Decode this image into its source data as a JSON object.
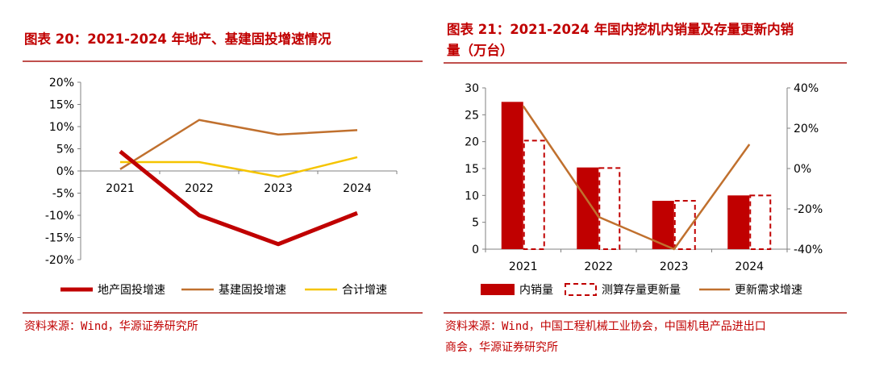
{
  "left": {
    "title": "图表 20：2021-2024 年地产、基建固投增速情况",
    "source": "资料来源：Wind，华源证券研究所"
  },
  "right": {
    "title_line1": "图表 21：2021-2024 年国内挖机内销量及存量更新内销",
    "title_line2": "量（万台）",
    "source_line1": "资料来源：Wind，中国工程机械工业协会，中国机电产品进出口",
    "source_line2": "商会，华源证券研究所"
  },
  "colors": {
    "title": "#c00000",
    "rule": "#c0504d",
    "dark_red": "#c00000",
    "orange": "#c0702e",
    "yellow": "#f5c400",
    "bar_red": "#c00000",
    "dashed_red": "#c00000"
  },
  "chart_data": [
    {
      "type": "line",
      "categories": [
        "2021",
        "2022",
        "2023",
        "2024"
      ],
      "ylim": [
        -20,
        20
      ],
      "yticks": [
        -20,
        -15,
        -10,
        -5,
        0,
        5,
        10,
        15,
        20
      ],
      "ytick_labels": [
        "-20%",
        "-15%",
        "-10%",
        "-5%",
        "0%",
        "5%",
        "10%",
        "15%",
        "20%"
      ],
      "series": [
        {
          "name": "地产固投增速",
          "values": [
            4.4,
            -10.0,
            -16.5,
            -9.5
          ],
          "color": "#c00000"
        },
        {
          "name": "基建固投增速",
          "values": [
            0.4,
            11.5,
            8.2,
            9.2
          ],
          "color": "#c0702e"
        },
        {
          "name": "合计增速",
          "values": [
            2.0,
            2.0,
            -1.3,
            3.1
          ],
          "color": "#f5c400"
        }
      ],
      "legend_position": "bottom"
    },
    {
      "type": "bar",
      "categories": [
        "2021",
        "2022",
        "2023",
        "2024"
      ],
      "ylim": [
        0,
        30
      ],
      "yticks": [
        0,
        5,
        10,
        15,
        20,
        25,
        30
      ],
      "ytick_labels": [
        "0",
        "5",
        "10",
        "15",
        "20",
        "25",
        "30"
      ],
      "y2lim": [
        -40,
        40
      ],
      "y2ticks": [
        -40,
        -20,
        0,
        20,
        40
      ],
      "y2tick_labels": [
        "-40%",
        "-20%",
        "0%",
        "20%",
        "40%"
      ],
      "series": [
        {
          "name": "内销量",
          "kind": "bar",
          "values": [
            27.4,
            15.2,
            9.0,
            10.0
          ],
          "color": "#c00000"
        },
        {
          "name": "测算存量更新量",
          "kind": "bar-dashed",
          "values": [
            20.2,
            15.1,
            9.0,
            10.0
          ],
          "color": "#c00000"
        },
        {
          "name": "更新需求增速",
          "kind": "line",
          "axis": "right",
          "values": [
            31.0,
            -24.0,
            -40.0,
            12.0
          ],
          "color": "#c0702e"
        }
      ],
      "legend_position": "bottom"
    }
  ]
}
